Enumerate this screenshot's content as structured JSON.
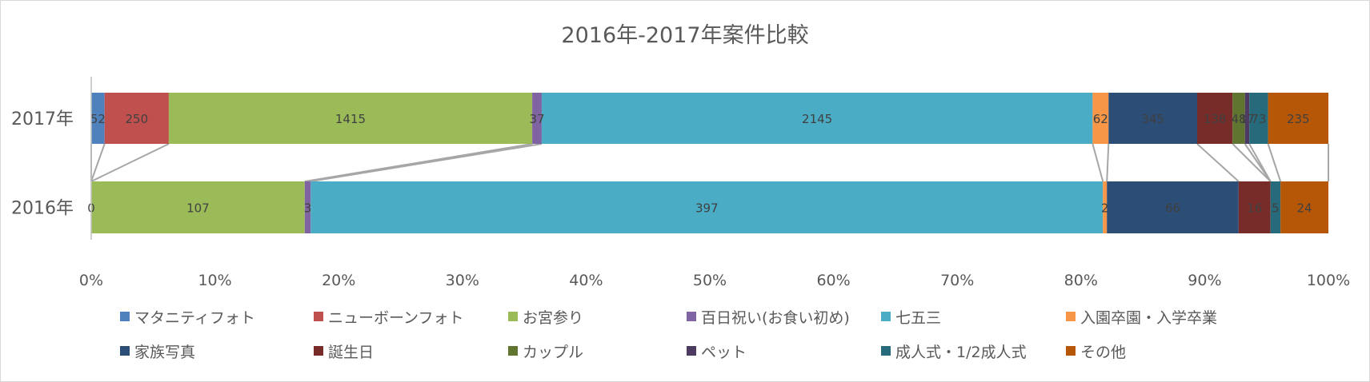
{
  "chart_data": {
    "type": "bar",
    "stacked": true,
    "normalized": true,
    "orientation": "horizontal",
    "title": "2016年-2017年案件比較",
    "categories": [
      "2017年",
      "2016年"
    ],
    "xlim": [
      0,
      100
    ],
    "x_ticks": [
      "0%",
      "10%",
      "20%",
      "30%",
      "40%",
      "50%",
      "60%",
      "70%",
      "80%",
      "90%",
      "100%"
    ],
    "legend_position": "bottom",
    "series_lines": true,
    "series": [
      {
        "name": "マタニティフォト",
        "color": "#4F81BD",
        "values": [
          52,
          0
        ],
        "labels": [
          "52",
          "0"
        ]
      },
      {
        "name": "ニューボーンフォト",
        "color": "#C0504D",
        "values": [
          250,
          0
        ],
        "labels": [
          "250",
          ""
        ]
      },
      {
        "name": "お宮参り",
        "color": "#9BBB59",
        "values": [
          1415,
          107
        ],
        "labels": [
          "1415",
          "107"
        ]
      },
      {
        "name": "百日祝い(お食い初め)",
        "color": "#8064A2",
        "values": [
          37,
          3
        ],
        "labels": [
          "37",
          "3"
        ]
      },
      {
        "name": "七五三",
        "color": "#4BACC6",
        "values": [
          2145,
          397
        ],
        "labels": [
          "2145",
          "397"
        ]
      },
      {
        "name": "入園卒園・入学卒業",
        "color": "#F79646",
        "values": [
          62,
          2
        ],
        "labels": [
          "62",
          "2"
        ]
      },
      {
        "name": "家族写真",
        "color": "#2C4D75",
        "values": [
          345,
          66
        ],
        "labels": [
          "345",
          "66"
        ]
      },
      {
        "name": "誕生日",
        "color": "#772C2A",
        "values": [
          138,
          16
        ],
        "labels": [
          "138",
          "16"
        ]
      },
      {
        "name": "カップル",
        "color": "#5F7530",
        "values": [
          48,
          0
        ],
        "labels": [
          "48",
          ""
        ]
      },
      {
        "name": "ペット",
        "color": "#4D3B62",
        "values": [
          17,
          0
        ],
        "labels": [
          "17",
          ""
        ]
      },
      {
        "name": "成人式・1/2成人式",
        "color": "#276A7C",
        "values": [
          73,
          5
        ],
        "labels": [
          "73",
          "5"
        ]
      },
      {
        "name": "その他",
        "color": "#B65708",
        "values": [
          235,
          24
        ],
        "labels": [
          "235",
          "24"
        ]
      }
    ]
  }
}
